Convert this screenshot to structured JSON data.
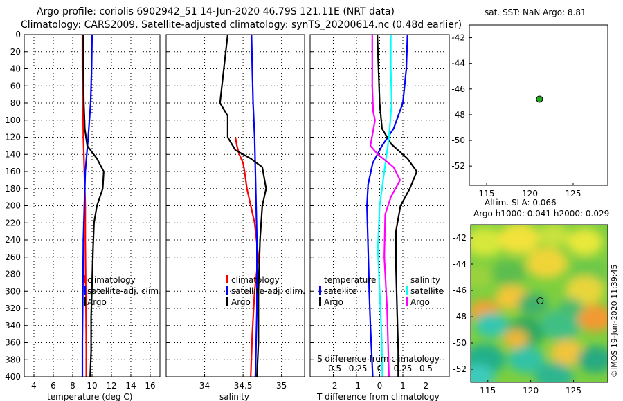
{
  "header": {
    "title_line1": "Argo profile: coriolis 6902942_51 14-Jun-2020 46.79S 121.11E (NRT data)",
    "title_line2": "Climatology: CARS2009. Satellite-adjusted climatology: synTS_20200614.nc (0.48d earlier)"
  },
  "credit": "©IMOS 19-Jun-2020 11:39:45",
  "colors": {
    "argo": "#000000",
    "climatology": "#ff0000",
    "satellite": "#0000ff",
    "sal_satellite": "#00ffff",
    "sal_argo": "#ff00ff",
    "float_marker": "#22aa22"
  },
  "chart_data": [
    {
      "id": "temperature",
      "type": "line",
      "title": "",
      "xlabel": "temperature (deg C)",
      "ylabel": "",
      "xlim": [
        3,
        17
      ],
      "ylim": [
        400,
        0
      ],
      "xticks": [
        4,
        6,
        8,
        10,
        12,
        14,
        16
      ],
      "xtick_labels": [
        "4",
        "6",
        "8",
        "10",
        "12",
        "14",
        "16"
      ],
      "yticks": [
        0,
        20,
        40,
        60,
        80,
        100,
        120,
        140,
        160,
        180,
        200,
        220,
        240,
        260,
        280,
        300,
        320,
        340,
        360,
        380,
        400
      ],
      "ytick_labels": [
        "0",
        "20",
        "40",
        "60",
        "80",
        "100",
        "120",
        "140",
        "160",
        "180",
        "200",
        "220",
        "240",
        "260",
        "280",
        "300",
        "320",
        "340",
        "360",
        "380",
        "400"
      ],
      "grid": true,
      "legend": [
        "climatology",
        "satellite-adj. clim.",
        "Argo"
      ],
      "series": [
        {
          "name": "climatology",
          "color": "#ff0000",
          "x": [
            9.0,
            9.0,
            9.05,
            9.1,
            9.2,
            9.3,
            9.3,
            9.35,
            9.4,
            9.4
          ],
          "y": [
            0,
            40,
            80,
            120,
            160,
            200,
            240,
            300,
            360,
            400
          ]
        },
        {
          "name": "satellite-adj. clim.",
          "color": "#0000ff",
          "x": [
            10.0,
            9.95,
            9.85,
            9.6,
            9.3,
            9.2,
            9.1,
            9.05,
            9.0,
            9.0
          ],
          "y": [
            0,
            40,
            80,
            120,
            160,
            200,
            240,
            300,
            360,
            400
          ]
        },
        {
          "name": "Argo",
          "color": "#000000",
          "x": [
            9.1,
            9.1,
            9.15,
            9.25,
            9.5,
            10.5,
            11.2,
            11.1,
            10.5,
            10.2,
            10.1,
            10.0,
            9.9,
            9.9,
            9.8
          ],
          "y": [
            0,
            40,
            80,
            110,
            130,
            145,
            160,
            180,
            200,
            220,
            250,
            290,
            330,
            370,
            400
          ]
        }
      ]
    },
    {
      "id": "salinity",
      "type": "line",
      "xlabel": "salinity",
      "xlim": [
        33.5,
        35.3
      ],
      "ylim": [
        400,
        0
      ],
      "xticks": [
        34,
        34.5,
        35
      ],
      "xtick_labels": [
        "34",
        "34.5",
        "35"
      ],
      "grid": true,
      "legend": [
        "climatology",
        "satellite-adj. clim.",
        "Argo"
      ],
      "series": [
        {
          "name": "climatology",
          "color": "#ff0000",
          "x": [
            34.4,
            34.42,
            34.45,
            34.5,
            34.52,
            34.55,
            34.6,
            34.65,
            34.7,
            34.65,
            34.62,
            34.6
          ],
          "y": [
            120,
            130,
            140,
            150,
            160,
            180,
            200,
            220,
            260,
            300,
            350,
            400
          ]
        },
        {
          "name": "satellite-adj. clim.",
          "color": "#0000ff",
          "x": [
            34.61,
            34.62,
            34.63,
            34.65,
            34.66,
            34.67,
            34.68,
            34.68,
            34.68,
            34.67,
            34.66
          ],
          "y": [
            0,
            40,
            80,
            120,
            160,
            200,
            240,
            280,
            320,
            360,
            400
          ]
        },
        {
          "name": "Argo",
          "color": "#000000",
          "x": [
            34.3,
            34.25,
            34.2,
            34.3,
            34.3,
            34.4,
            34.6,
            34.75,
            34.8,
            34.75,
            34.72,
            34.7,
            34.7,
            34.68
          ],
          "y": [
            0,
            40,
            80,
            95,
            120,
            135,
            145,
            155,
            180,
            200,
            240,
            300,
            360,
            400
          ]
        }
      ]
    },
    {
      "id": "difference",
      "type": "line",
      "xlabel": "T difference from climatology",
      "x2label": "S difference from climatology",
      "xlim": [
        -3,
        3
      ],
      "ylim": [
        400,
        0
      ],
      "xticks": [
        -2,
        -1,
        0,
        1,
        2
      ],
      "xtick_labels": [
        "-2",
        "-1",
        "0",
        "1",
        "2"
      ],
      "x2ticks": [
        -0.5,
        -0.25,
        0,
        0.25,
        0.5
      ],
      "x2tick_labels": [
        "-0.5",
        "-0.25",
        "0",
        "0.25",
        "0.5"
      ],
      "x2lim": [
        -0.75,
        0.75
      ],
      "grid": true,
      "legend": {
        "temperature_header": "temperature",
        "salinity_header": "salinity",
        "temperature": [
          "satellite",
          "Argo"
        ],
        "salinity": [
          "satellite",
          "Argo"
        ]
      },
      "series": [
        {
          "name": "temperature satellite",
          "color": "#0000ff",
          "x": [
            1.2,
            1.15,
            1.0,
            0.6,
            0.1,
            -0.3,
            -0.5,
            -0.55,
            -0.5,
            -0.45,
            -0.4,
            -0.35,
            -0.3
          ],
          "y": [
            0,
            40,
            80,
            110,
            130,
            150,
            175,
            200,
            250,
            300,
            340,
            370,
            400
          ]
        },
        {
          "name": "temperature Argo",
          "color": "#000000",
          "x": [
            -0.1,
            -0.05,
            0.0,
            0.1,
            0.5,
            1.2,
            1.6,
            1.3,
            0.9,
            0.7,
            0.7,
            0.75,
            0.8,
            0.8
          ],
          "y": [
            0,
            40,
            80,
            110,
            128,
            145,
            160,
            180,
            200,
            230,
            270,
            320,
            370,
            400
          ]
        },
        {
          "name": "salinity satellite",
          "color": "#00ffff",
          "x2": [
            0.12,
            0.12,
            0.13,
            0.1,
            0.05,
            0.0,
            -0.02,
            0.0,
            0.02,
            0.03
          ],
          "y": [
            0,
            40,
            80,
            120,
            160,
            200,
            250,
            300,
            350,
            400
          ]
        },
        {
          "name": "salinity Argo",
          "color": "#ff00ff",
          "x2": [
            -0.08,
            -0.08,
            -0.07,
            -0.05,
            -0.1,
            -0.02,
            0.15,
            0.22,
            0.12,
            0.06,
            0.05,
            0.08,
            0.1
          ],
          "y": [
            0,
            60,
            90,
            100,
            130,
            140,
            155,
            170,
            190,
            210,
            260,
            320,
            400
          ]
        }
      ]
    },
    {
      "id": "location-map",
      "type": "scatter",
      "title": "sat. SST: NaN Argo: 8.81",
      "xlim": [
        113,
        129
      ],
      "ylim": [
        -53.5,
        -41
      ],
      "xticks": [
        115,
        120,
        125
      ],
      "xtick_labels": [
        "115",
        "120",
        "125"
      ],
      "yticks": [
        -42,
        -44,
        -46,
        -48,
        -50,
        -52
      ],
      "ytick_labels": [
        "-42",
        "-44",
        "-46",
        "-48",
        "-50",
        "-52"
      ],
      "points": [
        {
          "x": 121.11,
          "y": -46.79,
          "label": "Argo float"
        }
      ]
    },
    {
      "id": "sla-map",
      "type": "heatmap",
      "title_line1": "Altim. SLA: 0.066",
      "title_line2": "Argo h1000: 0.041 h2000: 0.029",
      "xlim": [
        113,
        129
      ],
      "ylim": [
        -53,
        -41
      ],
      "xticks": [
        115,
        120,
        125
      ],
      "xtick_labels": [
        "115",
        "120",
        "125"
      ],
      "yticks": [
        -42,
        -44,
        -46,
        -48,
        -50,
        -52
      ],
      "ytick_labels": [
        "-42",
        "-44",
        "-46",
        "-48",
        "-50",
        "-52"
      ],
      "points": [
        {
          "x": 121.11,
          "y": -46.79,
          "label": "Argo float"
        }
      ]
    }
  ]
}
